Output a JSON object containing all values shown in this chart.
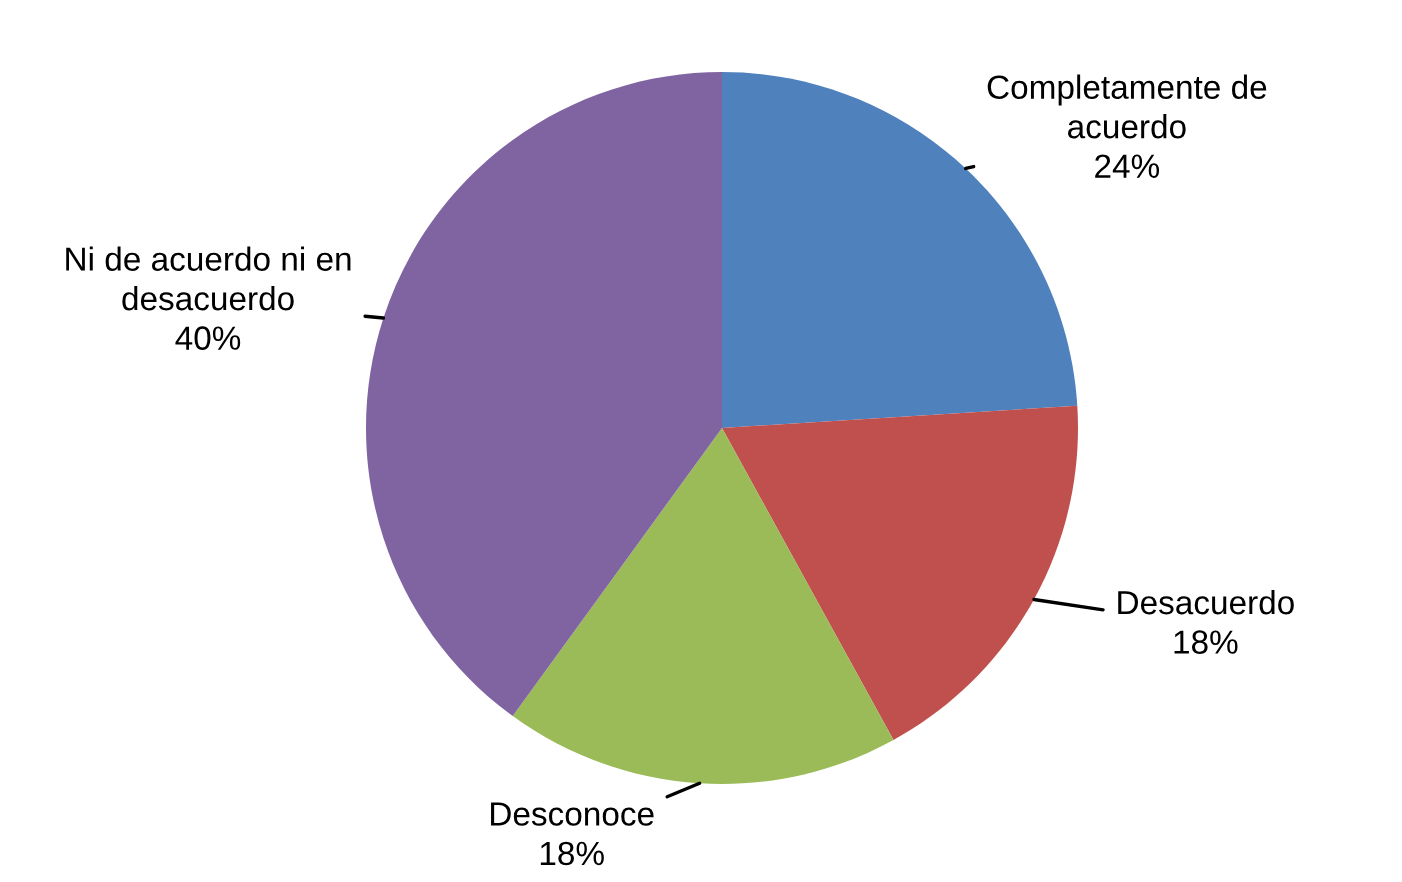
{
  "chart_data": {
    "type": "pie",
    "categories": [
      "Completamente de acuerdo",
      "Desacuerdo",
      "Desconoce",
      "Ni de acuerdo ni en desacuerdo"
    ],
    "values": [
      24,
      18,
      18,
      40
    ],
    "colors": [
      "#4f81bd",
      "#c0504d",
      "#9bbb59",
      "#8064a2"
    ],
    "value_labels": [
      "24%",
      "18%",
      "18%",
      "40%"
    ]
  }
}
